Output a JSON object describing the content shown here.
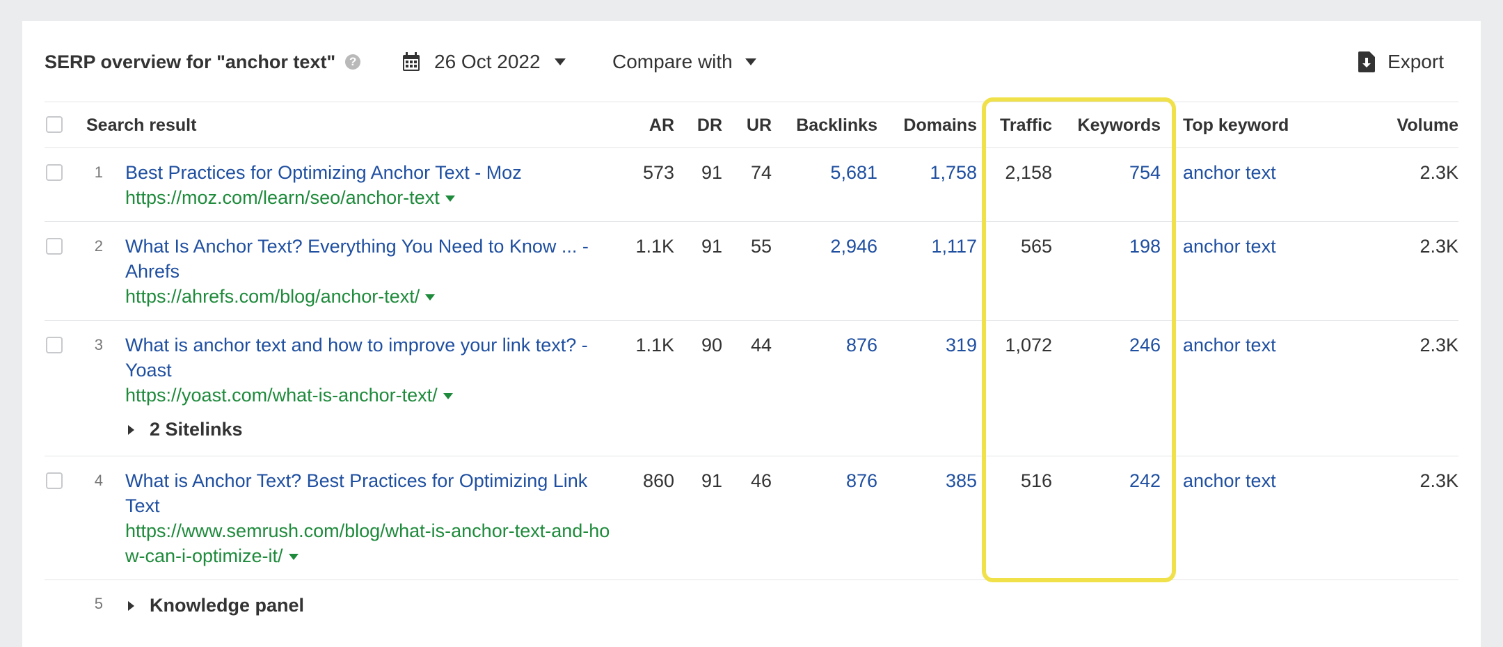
{
  "header": {
    "title": "SERP overview for \"anchor text\"",
    "help_icon": "question-circle-icon",
    "date": "26 Oct 2022",
    "compare_label": "Compare with",
    "export_label": "Export"
  },
  "columns": {
    "search_result": "Search result",
    "ar": "AR",
    "dr": "DR",
    "ur": "UR",
    "backlinks": "Backlinks",
    "domains": "Domains",
    "traffic": "Traffic",
    "keywords": "Keywords",
    "top_keyword": "Top keyword",
    "volume": "Volume"
  },
  "rows": [
    {
      "num": "1",
      "title": "Best Practices for Optimizing Anchor Text - Moz",
      "url": "https://moz.com/learn/seo/anchor-text",
      "ar": "573",
      "dr": "91",
      "ur": "74",
      "backlinks": "5,681",
      "domains": "1,758",
      "traffic": "2,158",
      "keywords": "754",
      "top_keyword": "anchor text",
      "volume": "2.3K"
    },
    {
      "num": "2",
      "title": "What Is Anchor Text? Everything You Need to Know ... - Ahrefs",
      "url": "https://ahrefs.com/blog/anchor-text/",
      "ar": "1.1K",
      "dr": "91",
      "ur": "55",
      "backlinks": "2,946",
      "domains": "1,117",
      "traffic": "565",
      "keywords": "198",
      "top_keyword": "anchor text",
      "volume": "2.3K"
    },
    {
      "num": "3",
      "title": "What is anchor text and how to improve your link text? - Yoast",
      "url": "https://yoast.com/what-is-anchor-text/",
      "ar": "1.1K",
      "dr": "90",
      "ur": "44",
      "backlinks": "876",
      "domains": "319",
      "traffic": "1,072",
      "keywords": "246",
      "top_keyword": "anchor text",
      "volume": "2.3K",
      "sitelinks": "2 Sitelinks"
    },
    {
      "num": "4",
      "title": "What is Anchor Text? Best Practices for Optimizing Link Text",
      "url": "https://www.semrush.com/blog/what-is-anchor-text-and-how-can-i-optimize-it/",
      "ar": "860",
      "dr": "91",
      "ur": "46",
      "backlinks": "876",
      "domains": "385",
      "traffic": "516",
      "keywords": "242",
      "top_keyword": "anchor text",
      "volume": "2.3K"
    },
    {
      "num": "5",
      "label": "Knowledge panel"
    }
  ],
  "highlight_color": "#f0e14a"
}
